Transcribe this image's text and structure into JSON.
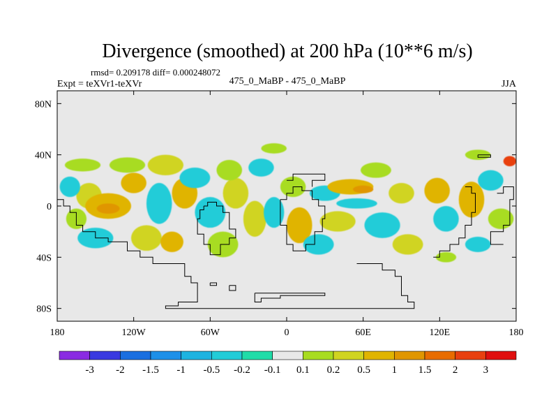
{
  "chart_data": {
    "type": "heatmap",
    "title": "Divergence (smoothed) at 200 hPa (10**6 m/s)",
    "stats": "rmsd= 0.209178 diff= 0.000248072",
    "left_label": "Expt = teXVr1-teXVr",
    "center_label": "475_0_MaBP - 475_0_MaBP",
    "right_label": "JJA",
    "x_range": [
      -180,
      180
    ],
    "y_range": [
      -90,
      90
    ],
    "x_ticks": [
      {
        "value": -180,
        "label": "180"
      },
      {
        "value": -120,
        "label": "120W"
      },
      {
        "value": -60,
        "label": "60W"
      },
      {
        "value": 0,
        "label": "0"
      },
      {
        "value": 60,
        "label": "60E"
      },
      {
        "value": 120,
        "label": "120E"
      },
      {
        "value": 180,
        "label": "180"
      }
    ],
    "y_ticks": [
      {
        "value": 80,
        "label": "80N"
      },
      {
        "value": 40,
        "label": "40N"
      },
      {
        "value": 0,
        "label": "0"
      },
      {
        "value": -40,
        "label": "40S"
      },
      {
        "value": -80,
        "label": "80S"
      }
    ],
    "colorbar": {
      "colors": [
        "#8a2be2",
        "#3a3ae0",
        "#1a6fe0",
        "#1e90e8",
        "#1eb3e0",
        "#22ccd8",
        "#20dca8",
        "#e8e8e8",
        "#a8dc20",
        "#d0d420",
        "#e0b400",
        "#e09600",
        "#e86c00",
        "#e84010",
        "#e01010"
      ],
      "labels": [
        "-3",
        "-2",
        "-1.5",
        "-1",
        "-0.5",
        "-0.2",
        "-0.1",
        "0.1",
        "0.2",
        "0.5",
        "1",
        "1.5",
        "2",
        "3"
      ]
    },
    "blobs": [
      {
        "lon": -155,
        "lat": 8,
        "rlon": 10,
        "rlat": 10,
        "level": 9
      },
      {
        "lon": -140,
        "lat": 0,
        "rlon": 18,
        "rlat": 10,
        "level": 10
      },
      {
        "lon": -140,
        "lat": -2,
        "rlon": 9,
        "rlat": 4,
        "level": 11
      },
      {
        "lon": -120,
        "lat": 18,
        "rlon": 10,
        "rlat": 8,
        "level": 10
      },
      {
        "lon": -170,
        "lat": 15,
        "rlon": 8,
        "rlat": 8,
        "level": 5
      },
      {
        "lon": -160,
        "lat": 32,
        "rlon": 14,
        "rlat": 5,
        "level": 8
      },
      {
        "lon": -125,
        "lat": 32,
        "rlon": 14,
        "rlat": 6,
        "level": 8
      },
      {
        "lon": -100,
        "lat": 2,
        "rlon": 10,
        "rlat": 16,
        "level": 5
      },
      {
        "lon": -95,
        "lat": 32,
        "rlon": 14,
        "rlat": 8,
        "level": 9
      },
      {
        "lon": -80,
        "lat": 10,
        "rlon": 10,
        "rlat": 12,
        "level": 10
      },
      {
        "lon": -72,
        "lat": 22,
        "rlon": 12,
        "rlat": 8,
        "level": 5
      },
      {
        "lon": -110,
        "lat": -25,
        "rlon": 12,
        "rlat": 10,
        "level": 9
      },
      {
        "lon": -150,
        "lat": -25,
        "rlon": 14,
        "rlat": 8,
        "level": 5
      },
      {
        "lon": -165,
        "lat": -10,
        "rlon": 8,
        "rlat": 8,
        "level": 8
      },
      {
        "lon": -90,
        "lat": -28,
        "rlon": 9,
        "rlat": 8,
        "level": 10
      },
      {
        "lon": -60,
        "lat": -5,
        "rlon": 12,
        "rlat": 12,
        "level": 5
      },
      {
        "lon": -40,
        "lat": 10,
        "rlon": 10,
        "rlat": 12,
        "level": 9
      },
      {
        "lon": -45,
        "lat": 28,
        "rlon": 10,
        "rlat": 8,
        "level": 8
      },
      {
        "lon": -20,
        "lat": 30,
        "rlon": 10,
        "rlat": 7,
        "level": 5
      },
      {
        "lon": -50,
        "lat": -30,
        "rlon": 12,
        "rlat": 10,
        "level": 8
      },
      {
        "lon": -25,
        "lat": -10,
        "rlon": 9,
        "rlat": 14,
        "level": 9
      },
      {
        "lon": -10,
        "lat": -5,
        "rlon": 8,
        "rlat": 12,
        "level": 5
      },
      {
        "lon": 5,
        "lat": 15,
        "rlon": 10,
        "rlat": 8,
        "level": 8
      },
      {
        "lon": 10,
        "lat": -15,
        "rlon": 10,
        "rlat": 14,
        "level": 10
      },
      {
        "lon": 25,
        "lat": -30,
        "rlon": 12,
        "rlat": 8,
        "level": 5
      },
      {
        "lon": 30,
        "lat": 10,
        "rlon": 12,
        "rlat": 6,
        "level": 5
      },
      {
        "lon": 40,
        "lat": -12,
        "rlon": 14,
        "rlat": 8,
        "level": 9
      },
      {
        "lon": 50,
        "lat": 15,
        "rlon": 18,
        "rlat": 6,
        "level": 10
      },
      {
        "lon": 60,
        "lat": 13,
        "rlon": 8,
        "rlat": 3,
        "level": 11
      },
      {
        "lon": 55,
        "lat": 2,
        "rlon": 16,
        "rlat": 4,
        "level": 5
      },
      {
        "lon": 75,
        "lat": -15,
        "rlon": 14,
        "rlat": 10,
        "level": 5
      },
      {
        "lon": 70,
        "lat": 28,
        "rlon": 12,
        "rlat": 6,
        "level": 8
      },
      {
        "lon": 90,
        "lat": 10,
        "rlon": 10,
        "rlat": 8,
        "level": 9
      },
      {
        "lon": 95,
        "lat": -30,
        "rlon": 12,
        "rlat": 8,
        "level": 9
      },
      {
        "lon": 118,
        "lat": 12,
        "rlon": 10,
        "rlat": 10,
        "level": 10
      },
      {
        "lon": 125,
        "lat": -10,
        "rlon": 10,
        "rlat": 10,
        "level": 5
      },
      {
        "lon": 145,
        "lat": 5,
        "rlon": 10,
        "rlat": 14,
        "level": 10
      },
      {
        "lon": 160,
        "lat": 20,
        "rlon": 10,
        "rlat": 8,
        "level": 5
      },
      {
        "lon": 168,
        "lat": -10,
        "rlon": 10,
        "rlat": 8,
        "level": 8
      },
      {
        "lon": 150,
        "lat": -30,
        "rlon": 10,
        "rlat": 6,
        "level": 5
      },
      {
        "lon": -10,
        "lat": 45,
        "rlon": 10,
        "rlat": 4,
        "level": 8
      },
      {
        "lon": 150,
        "lat": 40,
        "rlon": 10,
        "rlat": 4,
        "level": 8
      },
      {
        "lon": 125,
        "lat": -40,
        "rlon": 8,
        "rlat": 4,
        "level": 8
      },
      {
        "lon": 175,
        "lat": 35,
        "rlon": 5,
        "rlat": 4,
        "level": 13
      }
    ],
    "coastlines": [
      [
        [
          -180,
          5
        ],
        [
          -175,
          5
        ],
        [
          -175,
          0
        ],
        [
          -170,
          0
        ],
        [
          -170,
          -5
        ],
        [
          -165,
          -5
        ],
        [
          -165,
          -15
        ],
        [
          -160,
          -15
        ],
        [
          -160,
          -20
        ],
        [
          -150,
          -20
        ],
        [
          -150,
          -25
        ],
        [
          -140,
          -25
        ],
        [
          -140,
          -28
        ],
        [
          -125,
          -28
        ],
        [
          -125,
          -35
        ],
        [
          -115,
          -35
        ],
        [
          -115,
          -40
        ],
        [
          -105,
          -40
        ],
        [
          -105,
          -45
        ],
        [
          -80,
          -45
        ],
        [
          -80,
          -55
        ],
        [
          -75,
          -55
        ],
        [
          -75,
          -60
        ],
        [
          -70,
          -60
        ],
        [
          -70,
          -75
        ],
        [
          -85,
          -75
        ],
        [
          -85,
          -78
        ],
        [
          -95,
          -78
        ],
        [
          -95,
          -80
        ],
        [
          -25,
          -80
        ],
        [
          100,
          -80
        ],
        [
          100,
          -75
        ],
        [
          95,
          -75
        ],
        [
          95,
          -70
        ],
        [
          90,
          -70
        ],
        [
          90,
          -55
        ],
        [
          85,
          -55
        ],
        [
          85,
          -50
        ],
        [
          75,
          -50
        ],
        [
          75,
          -45
        ],
        [
          55,
          -45
        ]
      ],
      [
        [
          -65,
          0
        ],
        [
          -62,
          0
        ],
        [
          -62,
          3
        ],
        [
          -55,
          3
        ],
        [
          -55,
          0
        ],
        [
          -50,
          0
        ],
        [
          -50,
          -5
        ],
        [
          -45,
          -5
        ],
        [
          -45,
          -18
        ],
        [
          -40,
          -18
        ],
        [
          -40,
          -25
        ],
        [
          -45,
          -25
        ],
        [
          -45,
          -30
        ],
        [
          -52,
          -30
        ],
        [
          -52,
          -38
        ],
        [
          -60,
          -38
        ],
        [
          -60,
          -30
        ],
        [
          -65,
          -30
        ],
        [
          -65,
          -22
        ],
        [
          -70,
          -22
        ],
        [
          -70,
          -10
        ],
        [
          -68,
          -10
        ],
        [
          -68,
          -3
        ],
        [
          -65,
          -3
        ],
        [
          -65,
          0
        ]
      ],
      [
        [
          -5,
          5
        ],
        [
          0,
          5
        ],
        [
          0,
          10
        ],
        [
          5,
          10
        ],
        [
          5,
          15
        ],
        [
          12,
          15
        ],
        [
          12,
          12
        ],
        [
          20,
          12
        ],
        [
          20,
          5
        ],
        [
          25,
          5
        ],
        [
          25,
          0
        ],
        [
          30,
          0
        ],
        [
          30,
          -10
        ],
        [
          28,
          -10
        ],
        [
          28,
          -20
        ],
        [
          22,
          -20
        ],
        [
          22,
          -30
        ],
        [
          15,
          -30
        ],
        [
          15,
          -35
        ],
        [
          5,
          -35
        ],
        [
          5,
          -30
        ],
        [
          0,
          -30
        ],
        [
          0,
          -15
        ],
        [
          -5,
          -15
        ],
        [
          -5,
          5
        ]
      ],
      [
        [
          0,
          20
        ],
        [
          5,
          20
        ],
        [
          5,
          25
        ],
        [
          30,
          25
        ],
        [
          30,
          20
        ],
        [
          20,
          20
        ],
        [
          20,
          15
        ]
      ],
      [
        [
          -60,
          -60
        ],
        [
          -55,
          -60
        ],
        [
          -55,
          -62
        ],
        [
          -60,
          -62
        ],
        [
          -60,
          -60
        ]
      ],
      [
        [
          -45,
          -62
        ],
        [
          -40,
          -62
        ],
        [
          -40,
          -66
        ],
        [
          -45,
          -66
        ],
        [
          -45,
          -62
        ]
      ],
      [
        [
          -25,
          -68
        ],
        [
          30,
          -68
        ],
        [
          30,
          -70
        ],
        [
          -5,
          -70
        ],
        [
          -5,
          -72
        ],
        [
          -20,
          -72
        ],
        [
          -20,
          -75
        ],
        [
          -25,
          -75
        ],
        [
          -25,
          -68
        ]
      ],
      [
        [
          150,
          40
        ],
        [
          160,
          40
        ],
        [
          160,
          38
        ],
        [
          150,
          38
        ],
        [
          150,
          40
        ]
      ],
      [
        [
          140,
          15
        ],
        [
          145,
          15
        ],
        [
          145,
          10
        ],
        [
          148,
          10
        ],
        [
          148,
          -5
        ],
        [
          145,
          -5
        ],
        [
          145,
          -15
        ],
        [
          140,
          -15
        ],
        [
          140,
          -25
        ],
        [
          135,
          -25
        ],
        [
          135,
          -30
        ],
        [
          128,
          -30
        ],
        [
          128,
          -35
        ],
        [
          120,
          -35
        ],
        [
          120,
          -40
        ],
        [
          115,
          -40
        ]
      ],
      [
        [
          165,
          10
        ],
        [
          170,
          10
        ],
        [
          170,
          15
        ],
        [
          178,
          15
        ],
        [
          178,
          5
        ],
        [
          175,
          5
        ],
        [
          175,
          -15
        ],
        [
          170,
          -15
        ],
        [
          170,
          -20
        ],
        [
          160,
          -20
        ],
        [
          160,
          -30
        ],
        [
          170,
          -30
        ]
      ]
    ]
  }
}
